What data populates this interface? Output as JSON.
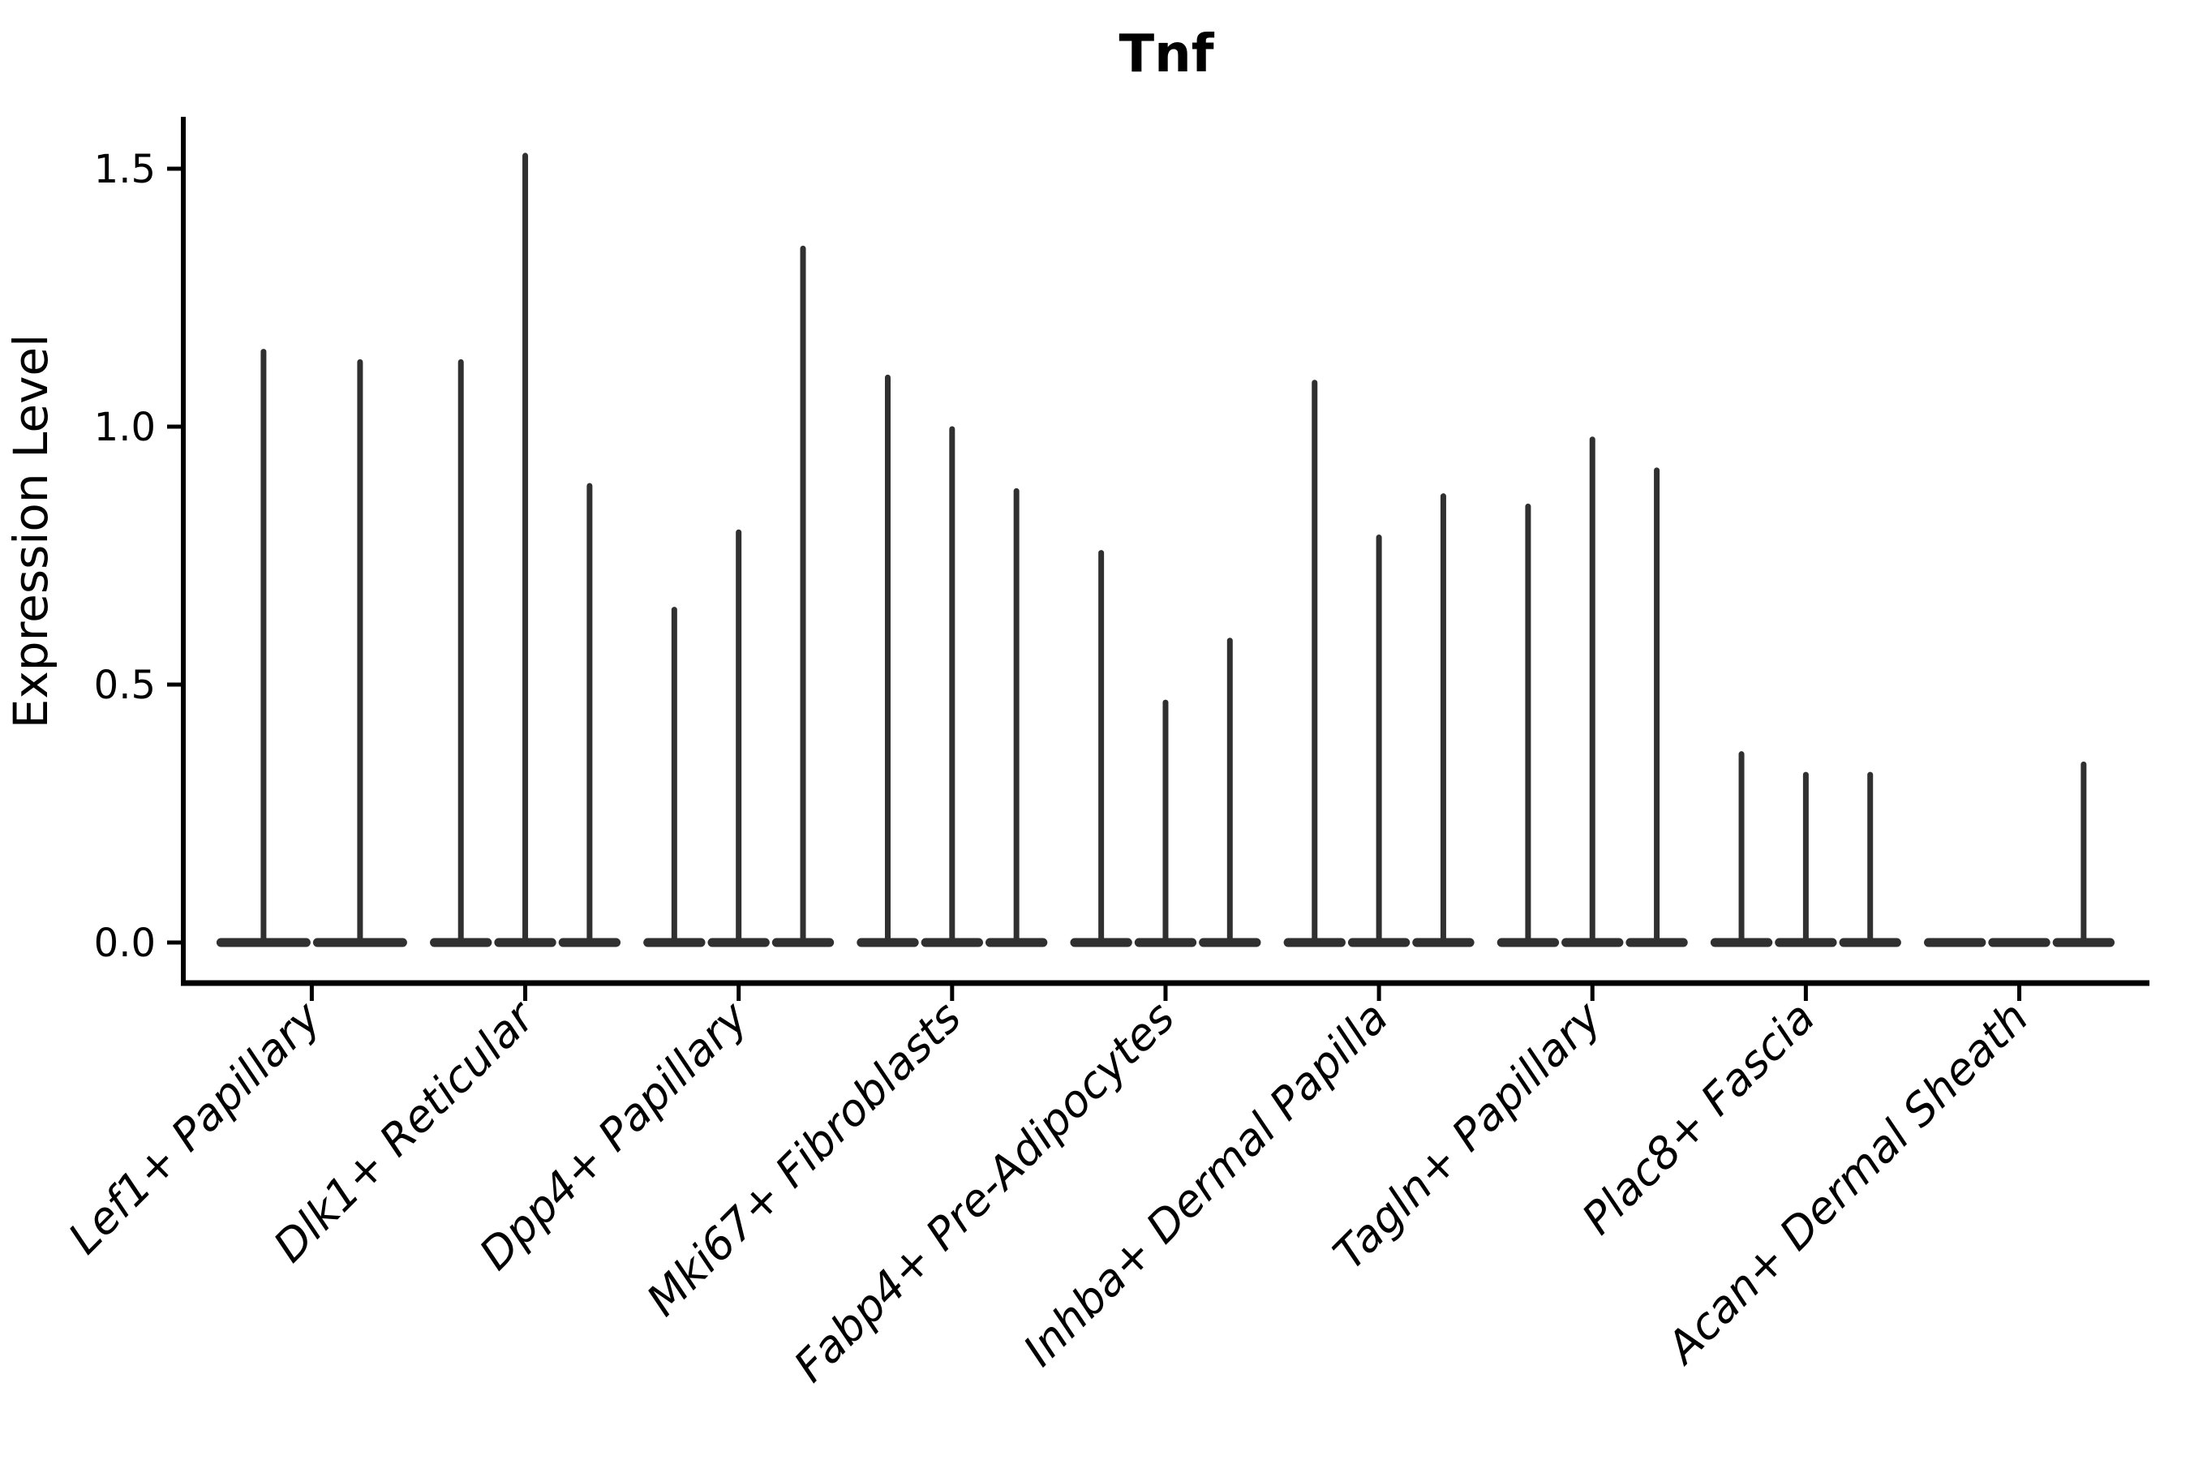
{
  "title": "Tnf",
  "chart_data": {
    "type": "violin",
    "title": "Tnf",
    "xlabel": "",
    "ylabel": "Expression Level",
    "ylim": [
      0,
      1.6
    ],
    "ytick_values": [
      0,
      0.5,
      1.0,
      1.5
    ],
    "ytick_labels": [
      "0.0",
      "0.5",
      "1.0",
      "1.5"
    ],
    "grid": false,
    "legend": "none",
    "x_tick_rotation": 45,
    "x_tick_style": "italic",
    "description": "Single-gene violin plot; each category holds 2-3 very thin violins (most cells at 0 form a flat base pancake; a thin spike rises to the max expression value).",
    "categories": [
      "Lef1+ Papillary",
      "Dlk1+ Reticular",
      "Dpp4+ Papillary",
      "Mki67+ Fibroblasts",
      "Fabp4+ Pre-Adipocytes",
      "Inhba+ Dermal Papilla",
      "Tagln+ Papillary",
      "Plac8+ Fascia",
      "Acan+ Dermal Sheath"
    ],
    "groups": [
      {
        "category": "Lef1+ Papillary",
        "violin_max": [
          1.15,
          1.13
        ]
      },
      {
        "category": "Dlk1+ Reticular",
        "violin_max": [
          1.13,
          1.53,
          0.89
        ]
      },
      {
        "category": "Dpp4+ Papillary",
        "violin_max": [
          0.65,
          0.8,
          1.35
        ]
      },
      {
        "category": "Mki67+ Fibroblasts",
        "violin_max": [
          1.1,
          1.0,
          0.88
        ]
      },
      {
        "category": "Fabp4+ Pre-Adipocytes",
        "violin_max": [
          0.76,
          0.47,
          0.59
        ]
      },
      {
        "category": "Inhba+ Dermal Papilla",
        "violin_max": [
          1.09,
          0.79,
          0.87
        ]
      },
      {
        "category": "Tagln+ Papillary",
        "violin_max": [
          0.85,
          0.98,
          0.92
        ]
      },
      {
        "category": "Plac8+ Fascia",
        "violin_max": [
          0.37,
          0.33,
          0.33
        ]
      },
      {
        "category": "Acan+ Dermal Sheath",
        "violin_max": [
          0.0,
          0.0,
          0.35
        ]
      }
    ],
    "colors": {
      "violin": "#303030",
      "axis": "#000000",
      "text": "#000000",
      "background": "#ffffff"
    }
  }
}
